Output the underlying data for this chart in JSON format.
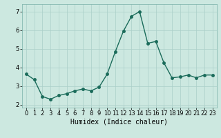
{
  "x": [
    0,
    1,
    2,
    3,
    4,
    5,
    6,
    7,
    8,
    9,
    10,
    11,
    12,
    13,
    14,
    15,
    16,
    17,
    18,
    19,
    20,
    21,
    22,
    23
  ],
  "y": [
    3.65,
    3.35,
    2.45,
    2.3,
    2.5,
    2.6,
    2.75,
    2.85,
    2.75,
    2.95,
    3.65,
    4.85,
    5.95,
    6.75,
    7.0,
    5.3,
    5.4,
    4.25,
    3.45,
    3.5,
    3.6,
    3.45,
    3.6,
    3.6
  ],
  "line_color": "#1a6b5a",
  "marker_color": "#1a6b5a",
  "bg_color": "#cce8e0",
  "grid_color": "#aacfc8",
  "xlabel": "Humidex (Indice chaleur)",
  "ylim": [
    1.85,
    7.4
  ],
  "xlim": [
    -0.5,
    23.5
  ],
  "yticks": [
    2,
    3,
    4,
    5,
    6,
    7
  ],
  "xticks": [
    0,
    1,
    2,
    3,
    4,
    5,
    6,
    7,
    8,
    9,
    10,
    11,
    12,
    13,
    14,
    15,
    16,
    17,
    18,
    19,
    20,
    21,
    22,
    23
  ],
  "xlabel_fontsize": 7,
  "tick_fontsize": 6,
  "line_width": 1.0,
  "marker_size": 2.5
}
